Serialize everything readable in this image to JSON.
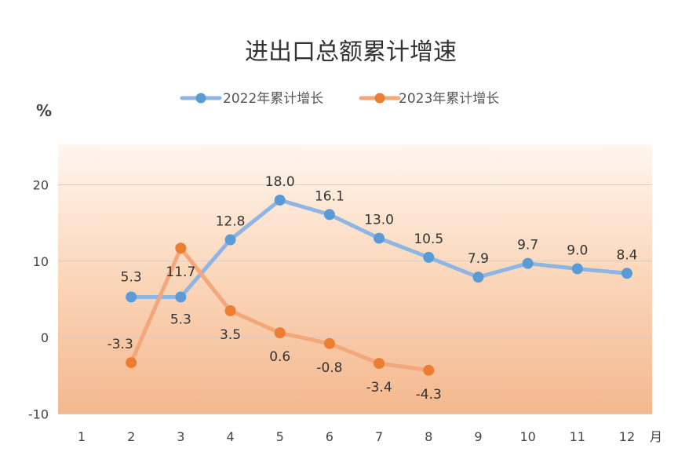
{
  "chart_data": {
    "type": "line",
    "title": "进出口总额累计增速",
    "ylabel": "%",
    "xlabel": "月",
    "categories": [
      "1",
      "2",
      "3",
      "4",
      "5",
      "6",
      "7",
      "8",
      "9",
      "10",
      "11",
      "12"
    ],
    "ylim": [
      -10,
      25
    ],
    "yticks": [
      -10,
      0,
      10,
      20
    ],
    "grid": true,
    "legend_position": "top-center",
    "series": [
      {
        "name": "2022年累计增长",
        "color": "#8FB6E3",
        "marker_color": "#5B9BD5",
        "label_position": "above",
        "values": [
          null,
          5.3,
          5.3,
          12.8,
          18.0,
          16.1,
          13.0,
          10.5,
          7.9,
          9.7,
          9.0,
          8.4
        ],
        "labels": [
          "",
          "5.3",
          "5.3",
          "12.8",
          "18.0",
          "16.1",
          "13.0",
          "10.5",
          "7.9",
          "9.7",
          "9.0",
          "8.4"
        ]
      },
      {
        "name": "2023年累计增长",
        "color": "#F4A77A",
        "marker_color": "#ED7D31",
        "label_position": "below",
        "values": [
          null,
          -3.3,
          11.7,
          3.5,
          0.6,
          -0.8,
          -3.4,
          -4.3,
          null,
          null,
          null,
          null
        ],
        "labels": [
          "",
          "-3.3",
          "11.7",
          "3.5",
          "0.6",
          "-0.8",
          "-3.4",
          "-4.3",
          "",
          "",
          "",
          ""
        ]
      }
    ]
  }
}
